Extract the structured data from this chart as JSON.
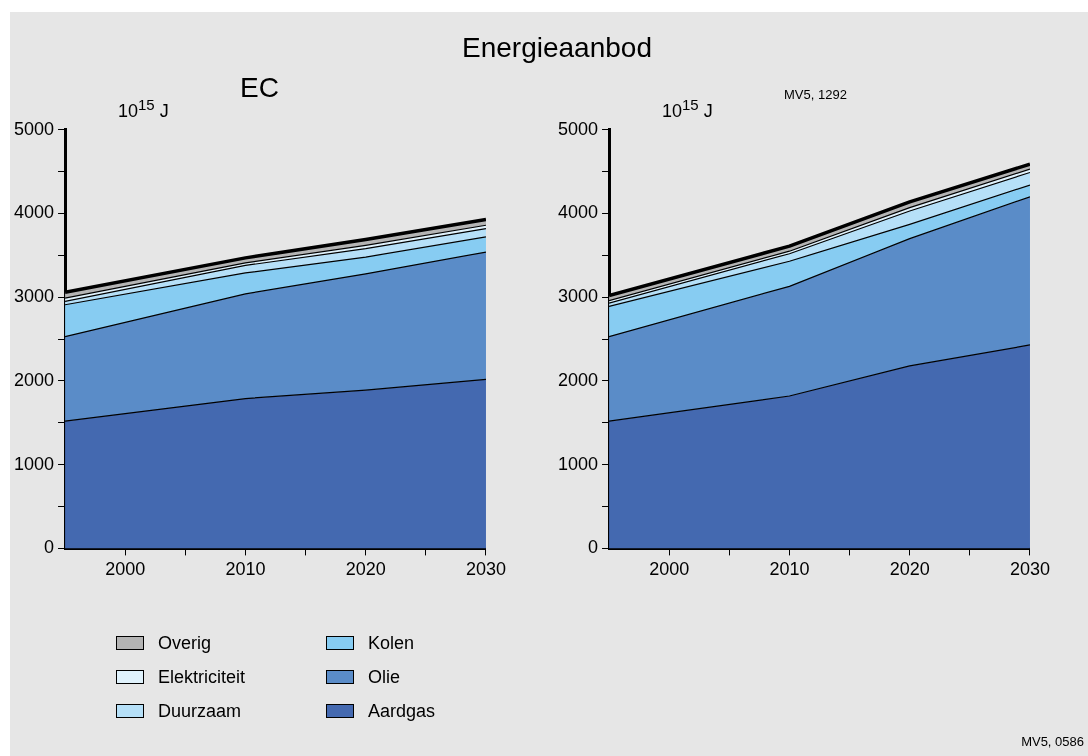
{
  "chart_data": [
    {
      "type": "area",
      "title": "Energieaanbod",
      "subtitle": "EC",
      "ylabel": "10$^{15}$ J",
      "stacked": true,
      "legend": "bottom",
      "grid": false,
      "x": [
        1995,
        2010,
        2020,
        2030
      ],
      "xlim": [
        1995,
        2030
      ],
      "xticks": [
        2000,
        {
          "value": 2005,
          "label": null
        },
        2010,
        {
          "value": 2015,
          "label": null
        },
        2020,
        {
          "value": 2025,
          "label": null
        },
        2030
      ],
      "ylim": [
        0,
        5000
      ],
      "yticks": [
        0,
        {
          "value": 500,
          "label": null
        },
        1000,
        {
          "value": 1500,
          "label": null
        },
        2000,
        {
          "value": 2500,
          "label": null
        },
        3000,
        {
          "value": 3500,
          "label": null
        },
        4000,
        {
          "value": 4500,
          "label": null
        },
        5000
      ],
      "series": [
        {
          "name": "Aardgas",
          "color": "#4469b0",
          "values": [
            1520,
            1790,
            1890,
            2020
          ]
        },
        {
          "name": "Olie",
          "color": "#5a8cc8",
          "values": [
            1010,
            1250,
            1390,
            1520
          ]
        },
        {
          "name": "Kolen",
          "color": "#87ccf2",
          "values": [
            380,
            250,
            200,
            180
          ]
        },
        {
          "name": "Duurzaam",
          "color": "#b6e0f8",
          "values": [
            40,
            90,
            100,
            100
          ]
        },
        {
          "name": "Elektriciteit",
          "color": "#e0f2fc",
          "values": [
            40,
            30,
            40,
            40
          ]
        },
        {
          "name": "Overig",
          "color": "#b4b4b4",
          "values": [
            70,
            60,
            70,
            70
          ]
        }
      ]
    },
    {
      "type": "area",
      "ylabel": "10$^{15}$ J",
      "stacked": true,
      "grid": false,
      "annotations": [
        "MV5, 1292",
        "MV5, 0586"
      ],
      "x": [
        1995,
        2010,
        2020,
        2030
      ],
      "xlim": [
        1995,
        2030
      ],
      "xticks": [
        2000,
        {
          "value": 2005,
          "label": null
        },
        2010,
        {
          "value": 2015,
          "label": null
        },
        2020,
        {
          "value": 2025,
          "label": null
        },
        2030
      ],
      "ylim": [
        0,
        5000
      ],
      "yticks": [
        0,
        {
          "value": 500,
          "label": null
        },
        1000,
        {
          "value": 1500,
          "label": null
        },
        2000,
        {
          "value": 2500,
          "label": null
        },
        3000,
        {
          "value": 3500,
          "label": null
        },
        4000,
        {
          "value": 4500,
          "label": null
        },
        5000
      ],
      "series": [
        {
          "color": "#4469b0",
          "values": [
            1520,
            1820,
            2180,
            2430
          ]
        },
        {
          "color": "#5a8cc8",
          "values": [
            1010,
            1310,
            1520,
            1770
          ]
        },
        {
          "color": "#87ccf2",
          "values": [
            360,
            300,
            170,
            140
          ]
        },
        {
          "color": "#b6e0f8",
          "values": [
            40,
            90,
            160,
            150
          ]
        },
        {
          "color": "#e0f2fc",
          "values": [
            30,
            30,
            40,
            40
          ]
        },
        {
          "color": "#b4b4b4",
          "values": [
            60,
            60,
            70,
            60
          ]
        }
      ]
    }
  ]
}
